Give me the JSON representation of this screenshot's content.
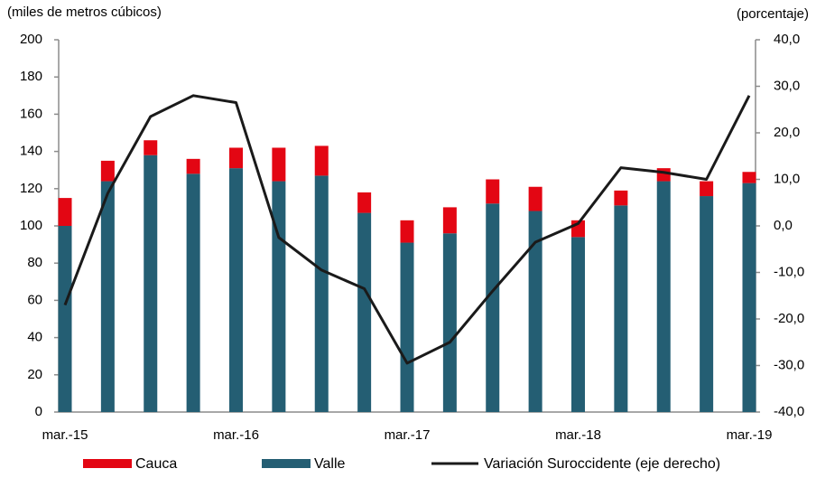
{
  "chart_data": {
    "type": "bar",
    "stacked": true,
    "y_label": "(miles de metros cúbicos)",
    "y2_label": "(porcentaje)",
    "categories": [
      "mar.-15",
      null,
      null,
      null,
      "mar.-16",
      null,
      null,
      null,
      "mar.-17",
      null,
      null,
      null,
      "mar.-18",
      null,
      null,
      null,
      "mar.-19"
    ],
    "series": [
      {
        "name": "Valle",
        "color": "#245e73",
        "values": [
          100,
          124,
          138,
          128,
          131,
          124,
          127,
          107,
          91,
          96,
          112,
          108,
          94,
          111,
          124,
          116,
          123
        ]
      },
      {
        "name": "Cauca",
        "color": "#e30613",
        "values": [
          15,
          11,
          8,
          8,
          11,
          18,
          16,
          11,
          12,
          14,
          13,
          13,
          9,
          8,
          7,
          8,
          6
        ]
      },
      {
        "name": "Variación Suroccidente (eje derecho)",
        "color": "#1a1a1a",
        "type": "line",
        "axis": "y2",
        "values": [
          -17,
          7,
          23.5,
          28,
          26.5,
          -2.5,
          -9.5,
          -13.5,
          -29.5,
          -25,
          -14,
          -3.5,
          0.5,
          12.5,
          11.5,
          10,
          28
        ]
      }
    ],
    "ylim": [
      0,
      200
    ],
    "yticks": [
      0,
      20,
      40,
      60,
      80,
      100,
      120,
      140,
      160,
      180,
      200
    ],
    "y2lim": [
      -40,
      40
    ],
    "y2ticks": [
      {
        "value": -40,
        "label": "-40,0"
      },
      {
        "value": -30,
        "label": "-30,0"
      },
      {
        "value": -20,
        "label": "-20,0"
      },
      {
        "value": -10,
        "label": "-10,0"
      },
      {
        "value": 0,
        "label": "0,0"
      },
      {
        "value": 10,
        "label": "10,0"
      },
      {
        "value": 20,
        "label": "20,0"
      },
      {
        "value": 30,
        "label": "30,0"
      },
      {
        "value": 40,
        "label": "40,0"
      }
    ],
    "grid": false,
    "legend": "bottom"
  }
}
